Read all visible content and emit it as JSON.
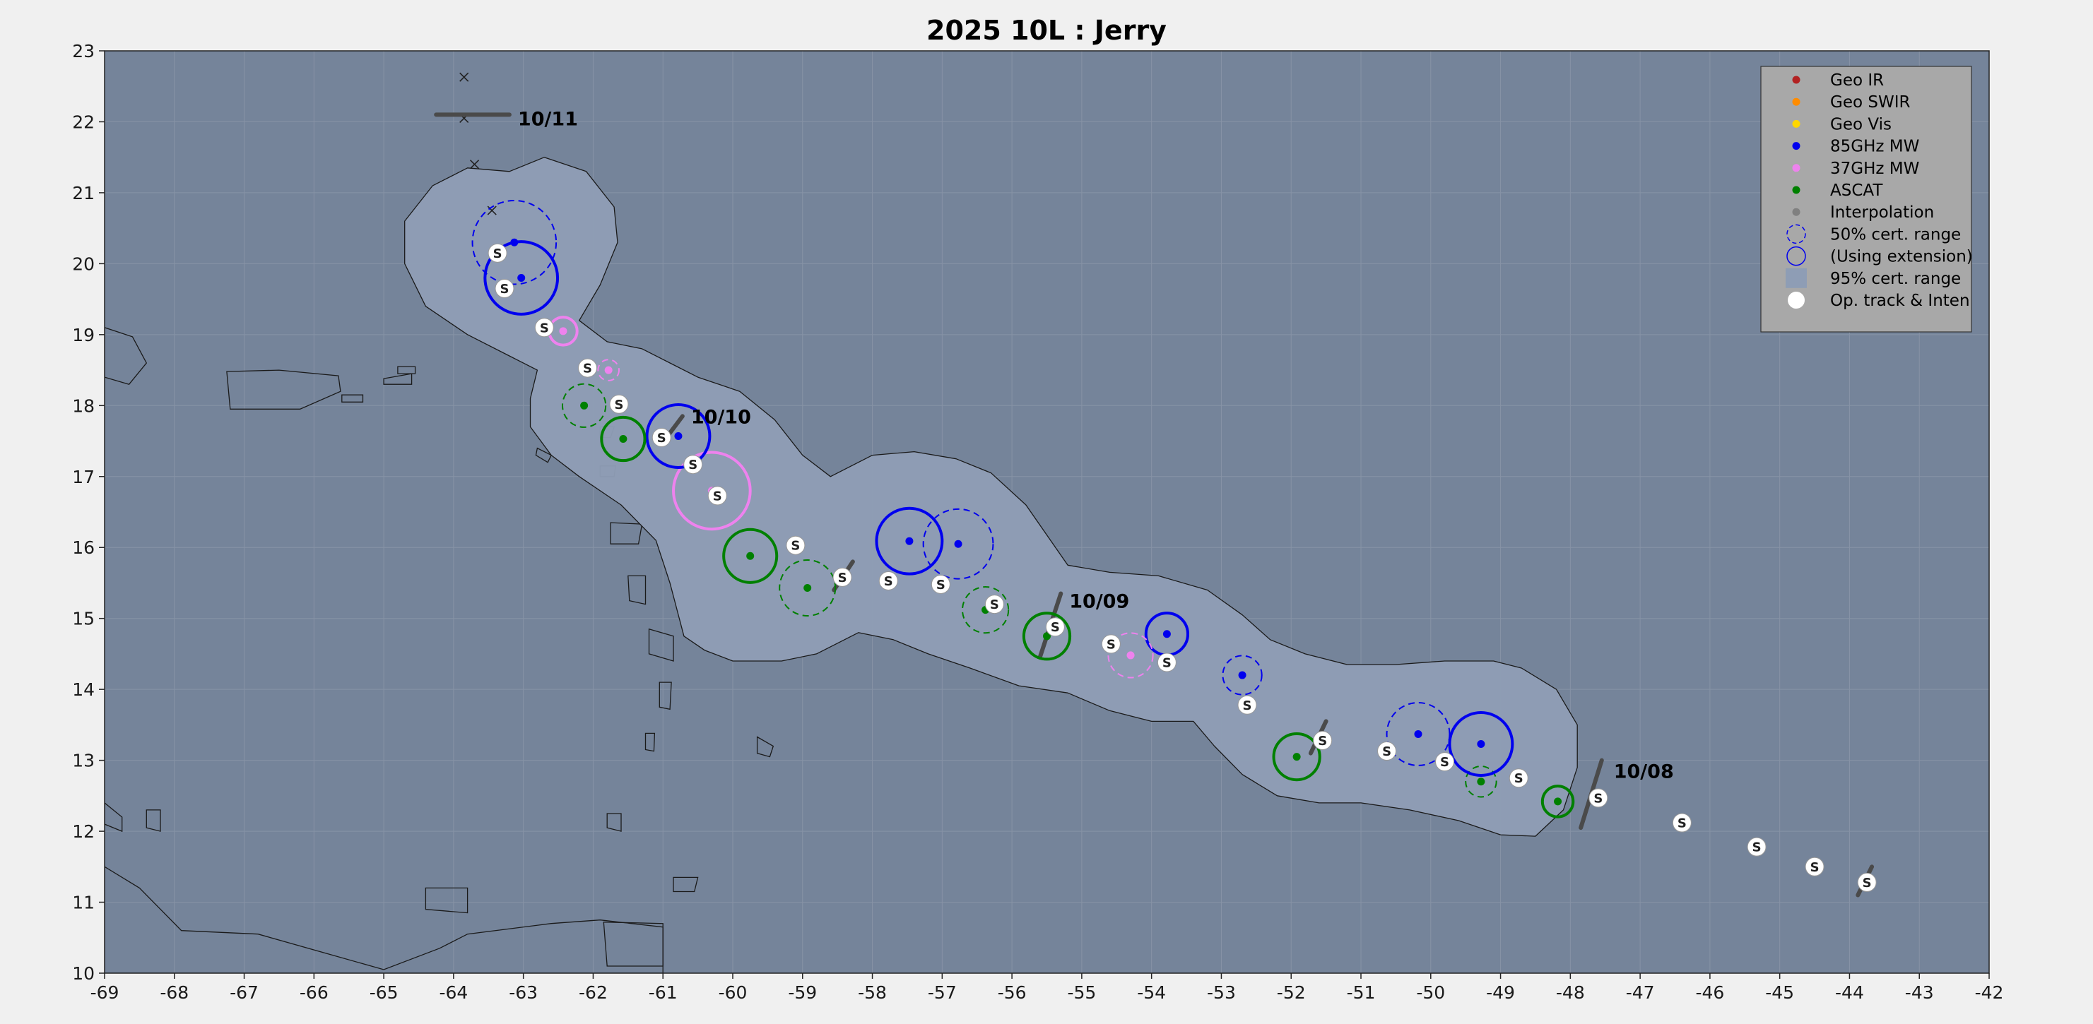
{
  "title": "2025  10L :  Jerry",
  "colors": {
    "ocean": "#75849a",
    "cone": "#8e9db5",
    "grid": "#8793a6",
    "geo_ir": "#b22222",
    "geo_swir": "#ff8c00",
    "geo_vis": "#ffd700",
    "mw85": "#0000ee",
    "mw37": "#ee82ee",
    "ascat": "#008000",
    "interp": "#808080",
    "op": "#ffffff"
  },
  "map": {
    "lon_range": [
      -69,
      -42
    ],
    "lat_range": [
      10,
      23
    ],
    "x_ticks": [
      "-69",
      "-68",
      "-67",
      "-66",
      "-65",
      "-64",
      "-63",
      "-62",
      "-61",
      "-60",
      "-59",
      "-58",
      "-57",
      "-56",
      "-55",
      "-54",
      "-53",
      "-52",
      "-51",
      "-50",
      "-49",
      "-48",
      "-47",
      "-46",
      "-45",
      "-44",
      "-43",
      "-42"
    ],
    "y_ticks": [
      "10",
      "11",
      "12",
      "13",
      "14",
      "15",
      "16",
      "17",
      "18",
      "19",
      "20",
      "21",
      "22",
      "23"
    ],
    "grid": true
  },
  "legend": {
    "placement": "top-right",
    "items": [
      {
        "label": "Geo IR",
        "symbol": "dot",
        "color": "#b22222"
      },
      {
        "label": "Geo SWIR",
        "symbol": "dot",
        "color": "#ff8c00"
      },
      {
        "label": "Geo Vis",
        "symbol": "dot",
        "color": "#ffd700"
      },
      {
        "label": "85GHz MW",
        "symbol": "dot",
        "color": "#0000ee"
      },
      {
        "label": "37GHz MW",
        "symbol": "dot",
        "color": "#ee82ee"
      },
      {
        "label": "ASCAT",
        "symbol": "dot",
        "color": "#008000"
      },
      {
        "label": "Interpolation",
        "symbol": "dot",
        "color": "#808080"
      },
      {
        "label": "50% cert. range",
        "symbol": "dashed-circle",
        "color": "#0000ee"
      },
      {
        "label": "(Using extension)",
        "symbol": "solid-circle",
        "color": "#0000ee"
      },
      {
        "label": "95% cert. range",
        "symbol": "square",
        "color": "#8e9db5"
      },
      {
        "label": "Op. track & Inten",
        "symbol": "white-dot",
        "color": "#ffffff"
      }
    ]
  },
  "date_labels": [
    {
      "text": "10/11",
      "lon": -63.2,
      "lat": 22.05
    },
    {
      "text": "10/10",
      "lon": -60.72,
      "lat": 17.85
    },
    {
      "text": "10/09",
      "lon": -55.3,
      "lat": 15.25
    },
    {
      "text": "10/08",
      "lon": -47.5,
      "lat": 12.85
    }
  ],
  "op_track": [
    {
      "lon": -43.75,
      "lat": 11.28,
      "label": "S"
    },
    {
      "lon": -44.5,
      "lat": 11.5,
      "label": "S"
    },
    {
      "lon": -45.33,
      "lat": 11.78,
      "label": "S"
    },
    {
      "lon": -46.4,
      "lat": 12.12,
      "label": "S"
    },
    {
      "lon": -47.6,
      "lat": 12.47,
      "label": "S"
    },
    {
      "lon": -48.74,
      "lat": 12.75,
      "label": "S"
    },
    {
      "lon": -49.8,
      "lat": 12.98,
      "label": "S"
    },
    {
      "lon": -50.63,
      "lat": 13.13,
      "label": "S"
    },
    {
      "lon": -51.55,
      "lat": 13.28,
      "label": "S"
    },
    {
      "lon": -52.63,
      "lat": 13.78,
      "label": "S"
    },
    {
      "lon": -53.78,
      "lat": 14.38,
      "label": "S"
    },
    {
      "lon": -54.58,
      "lat": 14.64,
      "label": "S"
    },
    {
      "lon": -55.38,
      "lat": 14.88,
      "label": "S"
    },
    {
      "lon": -56.25,
      "lat": 15.2,
      "label": "S"
    },
    {
      "lon": -57.02,
      "lat": 15.48,
      "label": "S"
    },
    {
      "lon": -57.77,
      "lat": 15.53,
      "label": "S"
    },
    {
      "lon": -58.43,
      "lat": 15.58,
      "label": "S"
    },
    {
      "lon": -59.1,
      "lat": 16.03,
      "label": "S"
    },
    {
      "lon": -60.22,
      "lat": 16.73,
      "label": "S"
    },
    {
      "lon": -60.57,
      "lat": 17.17,
      "label": "S"
    },
    {
      "lon": -61.02,
      "lat": 17.55,
      "label": "S"
    },
    {
      "lon": -61.63,
      "lat": 18.02,
      "label": "S"
    },
    {
      "lon": -62.08,
      "lat": 18.53,
      "label": "S"
    },
    {
      "lon": -62.7,
      "lat": 19.1,
      "label": "S"
    },
    {
      "lon": -63.27,
      "lat": 19.65,
      "label": "S"
    },
    {
      "lon": -63.37,
      "lat": 20.15,
      "label": "S"
    }
  ],
  "fixes": [
    {
      "type": "ascat",
      "lon": -48.18,
      "lat": 12.42,
      "radius_deg": 0.22,
      "style": "solid"
    },
    {
      "type": "ascat",
      "lon": -49.28,
      "lat": 12.7,
      "radius_deg": 0.22,
      "style": "dashed"
    },
    {
      "type": "mw85",
      "lon": -49.28,
      "lat": 13.23,
      "radius_deg": 0.45,
      "style": "solid"
    },
    {
      "type": "mw85",
      "lon": -50.18,
      "lat": 13.37,
      "radius_deg": 0.45,
      "style": "dashed"
    },
    {
      "type": "ascat",
      "lon": -51.92,
      "lat": 13.05,
      "radius_deg": 0.33,
      "style": "solid"
    },
    {
      "type": "mw85",
      "lon": -52.7,
      "lat": 14.2,
      "radius_deg": 0.28,
      "style": "dashed"
    },
    {
      "type": "mw85",
      "lon": -53.78,
      "lat": 14.78,
      "radius_deg": 0.3,
      "style": "solid"
    },
    {
      "type": "mw37",
      "lon": -54.3,
      "lat": 14.48,
      "radius_deg": 0.32,
      "style": "dashed"
    },
    {
      "type": "ascat",
      "lon": -55.5,
      "lat": 14.75,
      "radius_deg": 0.33,
      "style": "solid"
    },
    {
      "type": "ascat",
      "lon": -56.38,
      "lat": 15.12,
      "radius_deg": 0.33,
      "style": "dashed"
    },
    {
      "type": "mw85",
      "lon": -56.77,
      "lat": 16.05,
      "radius_deg": 0.5,
      "style": "dashed"
    },
    {
      "type": "mw85",
      "lon": -57.47,
      "lat": 16.09,
      "radius_deg": 0.47,
      "style": "solid"
    },
    {
      "type": "ascat",
      "lon": -58.93,
      "lat": 15.43,
      "radius_deg": 0.4,
      "style": "dashed"
    },
    {
      "type": "ascat",
      "lon": -59.75,
      "lat": 15.88,
      "radius_deg": 0.38,
      "style": "solid"
    },
    {
      "type": "mw37",
      "lon": -60.3,
      "lat": 16.8,
      "radius_deg": 0.55,
      "style": "solid"
    },
    {
      "type": "mw85",
      "lon": -60.78,
      "lat": 17.57,
      "radius_deg": 0.45,
      "style": "solid"
    },
    {
      "type": "ascat",
      "lon": -61.57,
      "lat": 17.53,
      "radius_deg": 0.31,
      "style": "solid"
    },
    {
      "type": "ascat",
      "lon": -62.13,
      "lat": 18.0,
      "radius_deg": 0.31,
      "style": "dashed"
    },
    {
      "type": "mw37",
      "lon": -61.78,
      "lat": 18.5,
      "radius_deg": 0.15,
      "style": "dashed"
    },
    {
      "type": "mw37",
      "lon": -62.43,
      "lat": 19.05,
      "radius_deg": 0.2,
      "style": "solid"
    },
    {
      "type": "mw85",
      "lon": -63.03,
      "lat": 19.8,
      "radius_deg": 0.52,
      "style": "solid"
    },
    {
      "type": "mw85",
      "lon": -63.13,
      "lat": 20.3,
      "radius_deg": 0.6,
      "style": "dashed"
    }
  ],
  "x_marks": [
    {
      "lon": -63.85,
      "lat": 22.63
    },
    {
      "lon": -63.85,
      "lat": 22.05
    },
    {
      "lon": -63.7,
      "lat": 21.4
    },
    {
      "lon": -63.45,
      "lat": 20.75
    }
  ],
  "motion_segments": [
    [
      [
        -64.25,
        22.1
      ],
      [
        -63.2,
        22.1
      ]
    ],
    [
      [
        -60.95,
        17.55
      ],
      [
        -60.72,
        17.85
      ]
    ],
    [
      [
        -58.55,
        15.4
      ],
      [
        -58.28,
        15.8
      ]
    ],
    [
      [
        -55.6,
        14.45
      ],
      [
        -55.3,
        15.35
      ]
    ],
    [
      [
        -51.72,
        13.1
      ],
      [
        -51.5,
        13.55
      ]
    ],
    [
      [
        -47.85,
        12.05
      ],
      [
        -47.55,
        13.0
      ]
    ],
    [
      [
        -43.88,
        11.1
      ],
      [
        -43.68,
        11.5
      ]
    ]
  ],
  "cone_95": [
    [
      -63.2,
      21.3
    ],
    [
      -62.7,
      21.5
    ],
    [
      -62.1,
      21.3
    ],
    [
      -61.7,
      20.8
    ],
    [
      -61.65,
      20.3
    ],
    [
      -61.9,
      19.7
    ],
    [
      -62.2,
      19.2
    ],
    [
      -61.8,
      18.9
    ],
    [
      -61.3,
      18.8
    ],
    [
      -60.9,
      18.6
    ],
    [
      -60.5,
      18.4
    ],
    [
      -59.9,
      18.2
    ],
    [
      -59.4,
      17.8
    ],
    [
      -59.0,
      17.3
    ],
    [
      -58.6,
      17.0
    ],
    [
      -58.0,
      17.3
    ],
    [
      -57.4,
      17.35
    ],
    [
      -56.8,
      17.25
    ],
    [
      -56.3,
      17.05
    ],
    [
      -55.8,
      16.6
    ],
    [
      -55.2,
      15.75
    ],
    [
      -54.6,
      15.65
    ],
    [
      -53.9,
      15.6
    ],
    [
      -53.2,
      15.4
    ],
    [
      -52.7,
      15.05
    ],
    [
      -52.3,
      14.7
    ],
    [
      -51.8,
      14.5
    ],
    [
      -51.2,
      14.35
    ],
    [
      -50.5,
      14.35
    ],
    [
      -49.8,
      14.4
    ],
    [
      -49.1,
      14.4
    ],
    [
      -48.7,
      14.3
    ],
    [
      -48.2,
      14.0
    ],
    [
      -47.9,
      13.5
    ],
    [
      -47.9,
      12.9
    ],
    [
      -48.1,
      12.3
    ],
    [
      -48.5,
      11.93
    ],
    [
      -49.0,
      11.95
    ],
    [
      -49.6,
      12.15
    ],
    [
      -50.3,
      12.3
    ],
    [
      -51.0,
      12.4
    ],
    [
      -51.6,
      12.4
    ],
    [
      -52.2,
      12.5
    ],
    [
      -52.7,
      12.8
    ],
    [
      -53.1,
      13.2
    ],
    [
      -53.4,
      13.55
    ],
    [
      -54.0,
      13.55
    ],
    [
      -54.6,
      13.7
    ],
    [
      -55.2,
      13.95
    ],
    [
      -55.9,
      14.05
    ],
    [
      -56.6,
      14.3
    ],
    [
      -57.2,
      14.5
    ],
    [
      -57.7,
      14.7
    ],
    [
      -58.2,
      14.8
    ],
    [
      -58.8,
      14.5
    ],
    [
      -59.3,
      14.4
    ],
    [
      -60.0,
      14.4
    ],
    [
      -60.4,
      14.55
    ],
    [
      -60.7,
      14.75
    ],
    [
      -60.9,
      15.5
    ],
    [
      -61.1,
      16.1
    ],
    [
      -61.6,
      16.6
    ],
    [
      -62.2,
      17.0
    ],
    [
      -62.6,
      17.3
    ],
    [
      -62.9,
      17.7
    ],
    [
      -62.9,
      18.1
    ],
    [
      -62.8,
      18.5
    ],
    [
      -63.2,
      18.7
    ],
    [
      -63.8,
      19.0
    ],
    [
      -64.4,
      19.4
    ],
    [
      -64.7,
      20.0
    ],
    [
      -64.7,
      20.6
    ],
    [
      -64.3,
      21.1
    ],
    [
      -63.8,
      21.35
    ]
  ],
  "land": [
    {
      "name": "hispaniola",
      "coords": [
        [
          -69.0,
          19.1
        ],
        [
          -68.6,
          18.97
        ],
        [
          -68.4,
          18.6
        ],
        [
          -68.65,
          18.3
        ],
        [
          -69.0,
          18.4
        ]
      ]
    },
    {
      "name": "puerto-rico",
      "coords": [
        [
          -67.25,
          18.48
        ],
        [
          -66.5,
          18.5
        ],
        [
          -65.65,
          18.42
        ],
        [
          -65.62,
          18.2
        ],
        [
          -66.2,
          17.95
        ],
        [
          -67.2,
          17.95
        ]
      ]
    },
    {
      "name": "south-america",
      "coords": [
        [
          -69.0,
          11.5
        ],
        [
          -68.5,
          11.2
        ],
        [
          -67.9,
          10.6
        ],
        [
          -66.8,
          10.55
        ],
        [
          -65.9,
          10.3
        ],
        [
          -65.0,
          10.05
        ],
        [
          -64.2,
          10.35
        ],
        [
          -63.8,
          10.55
        ],
        [
          -62.6,
          10.7
        ],
        [
          -61.9,
          10.75
        ],
        [
          -61.0,
          10.65
        ],
        [
          -61.0,
          10.0
        ],
        [
          -69.0,
          10.0
        ]
      ]
    },
    {
      "name": "trinidad",
      "coords": [
        [
          -61.85,
          10.72
        ],
        [
          -61.0,
          10.7
        ],
        [
          -61.0,
          10.1
        ],
        [
          -61.8,
          10.1
        ]
      ]
    },
    {
      "name": "guadeloupe",
      "coords": [
        [
          -61.75,
          16.35
        ],
        [
          -61.3,
          16.33
        ],
        [
          -61.35,
          16.05
        ],
        [
          -61.75,
          16.05
        ]
      ]
    },
    {
      "name": "martinique",
      "coords": [
        [
          -61.2,
          14.85
        ],
        [
          -60.85,
          14.75
        ],
        [
          -60.85,
          14.4
        ],
        [
          -61.2,
          14.5
        ]
      ]
    },
    {
      "name": "dominica",
      "coords": [
        [
          -61.5,
          15.6
        ],
        [
          -61.25,
          15.6
        ],
        [
          -61.25,
          15.2
        ],
        [
          -61.48,
          15.25
        ]
      ]
    },
    {
      "name": "st-lucia",
      "coords": [
        [
          -61.05,
          14.1
        ],
        [
          -60.88,
          14.1
        ],
        [
          -60.9,
          13.72
        ],
        [
          -61.05,
          13.75
        ]
      ]
    },
    {
      "name": "st-vincent",
      "coords": [
        [
          -61.25,
          13.38
        ],
        [
          -61.12,
          13.38
        ],
        [
          -61.13,
          13.13
        ],
        [
          -61.25,
          13.15
        ]
      ]
    },
    {
      "name": "grenada",
      "coords": [
        [
          -61.8,
          12.25
        ],
        [
          -61.6,
          12.25
        ],
        [
          -61.6,
          12.0
        ],
        [
          -61.8,
          12.05
        ]
      ]
    },
    {
      "name": "barbados",
      "coords": [
        [
          -59.65,
          13.33
        ],
        [
          -59.42,
          13.2
        ],
        [
          -59.47,
          13.05
        ],
        [
          -59.65,
          13.1
        ]
      ]
    },
    {
      "name": "tobago",
      "coords": [
        [
          -60.85,
          11.35
        ],
        [
          -60.5,
          11.35
        ],
        [
          -60.55,
          11.15
        ],
        [
          -60.85,
          11.15
        ]
      ]
    },
    {
      "name": "antigua",
      "coords": [
        [
          -61.9,
          17.15
        ],
        [
          -61.68,
          17.15
        ],
        [
          -61.7,
          17.0
        ],
        [
          -61.9,
          17.0
        ]
      ]
    },
    {
      "name": "barbuda",
      "coords": [
        [
          -61.9,
          17.7
        ],
        [
          -61.7,
          17.7
        ],
        [
          -61.75,
          17.55
        ],
        [
          -61.9,
          17.55
        ]
      ]
    },
    {
      "name": "st-kitts",
      "coords": [
        [
          -62.8,
          17.4
        ],
        [
          -62.6,
          17.3
        ],
        [
          -62.65,
          17.2
        ],
        [
          -62.82,
          17.3
        ]
      ]
    },
    {
      "name": "vieques",
      "coords": [
        [
          -65.6,
          18.15
        ],
        [
          -65.3,
          18.15
        ],
        [
          -65.3,
          18.05
        ],
        [
          -65.6,
          18.05
        ]
      ]
    },
    {
      "name": "virgin-islands",
      "coords": [
        [
          -65.0,
          18.38
        ],
        [
          -64.6,
          18.45
        ],
        [
          -64.6,
          18.3
        ],
        [
          -65.0,
          18.3
        ]
      ]
    },
    {
      "name": "aruba",
      "coords": [
        [
          -68.4,
          12.3
        ],
        [
          -68.2,
          12.3
        ],
        [
          -68.2,
          12.0
        ],
        [
          -68.4,
          12.05
        ]
      ]
    },
    {
      "name": "curacao",
      "coords": [
        [
          -69.0,
          12.4
        ],
        [
          -68.75,
          12.2
        ],
        [
          -68.75,
          12.0
        ],
        [
          -69.0,
          12.1
        ]
      ]
    },
    {
      "name": "margarita",
      "coords": [
        [
          -64.4,
          11.2
        ],
        [
          -63.8,
          11.2
        ],
        [
          -63.8,
          10.85
        ],
        [
          -64.4,
          10.9
        ]
      ]
    },
    {
      "name": "tortola",
      "coords": [
        [
          -64.8,
          18.55
        ],
        [
          -64.55,
          18.55
        ],
        [
          -64.55,
          18.45
        ],
        [
          -64.8,
          18.45
        ]
      ]
    }
  ]
}
